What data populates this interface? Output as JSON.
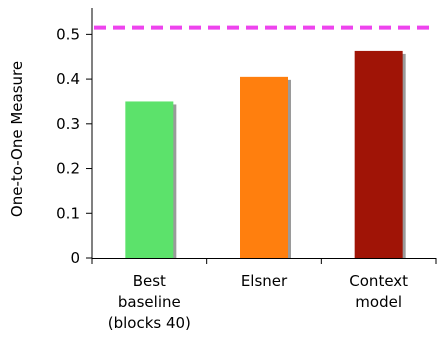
{
  "chart_data": {
    "type": "bar",
    "ylabel": "One-to-One Measure",
    "xlabel": "",
    "ylim": [
      0,
      0.55
    ],
    "yticks": [
      0,
      0.1,
      0.2,
      0.3,
      0.4,
      0.5
    ],
    "ytick_labels": [
      "0",
      "0.1",
      "0.2",
      "0.3",
      "0.4",
      "0.5"
    ],
    "categories": [
      [
        "Best",
        "baseline",
        "(blocks 40)"
      ],
      [
        "Elsner"
      ],
      [
        "Context",
        "model"
      ]
    ],
    "values": [
      0.35,
      0.405,
      0.463
    ],
    "bar_colors": [
      "#5ce26b",
      "#ff7f0e",
      "#a01406"
    ],
    "reference_line": {
      "value": 0.515,
      "color": "#ee44ee",
      "style": "dashed"
    },
    "grid": false,
    "legend": "none"
  }
}
